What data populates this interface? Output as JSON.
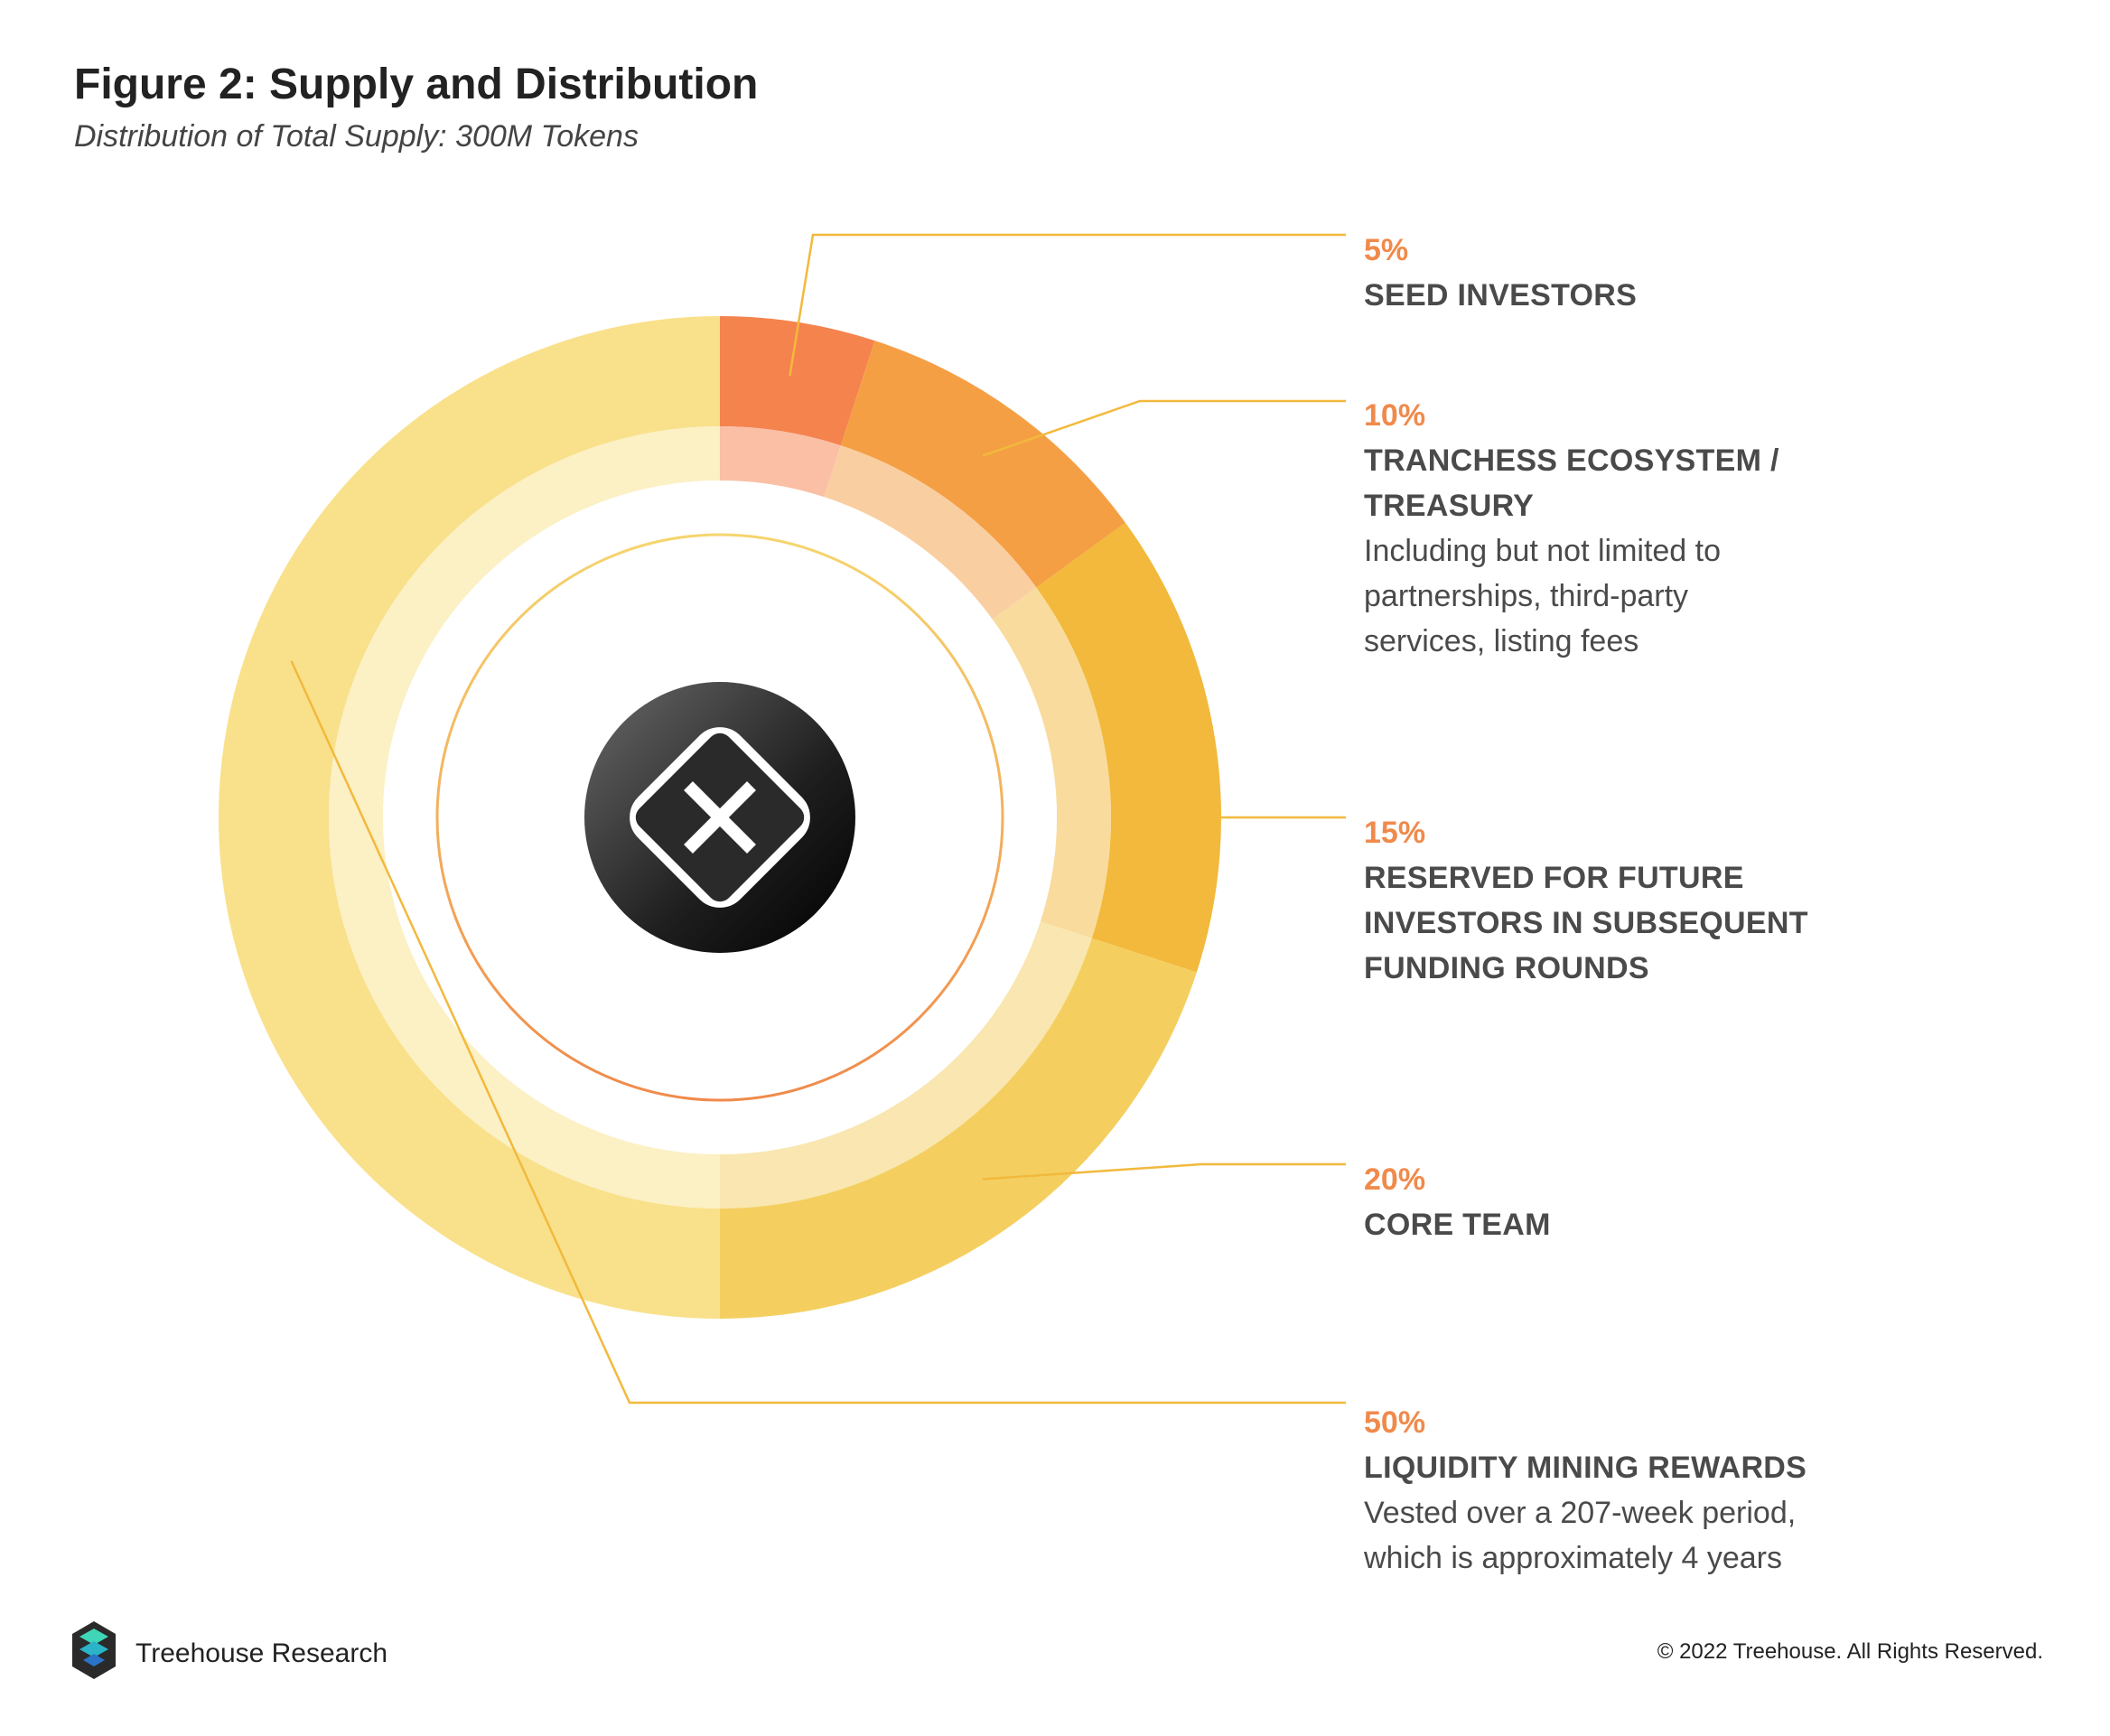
{
  "chart_data": {
    "type": "pie",
    "title": "Figure 2: Supply and Distribution",
    "subtitle": "Distribution of Total Supply: 300M Tokens",
    "slices": [
      {
        "percent_label": "5%",
        "value": 5,
        "name": "SEED INVESTORS",
        "description": "",
        "color": "#f4834e",
        "inner_color": "#fbbfa6"
      },
      {
        "percent_label": "10%",
        "value": 10,
        "name": "TRANCHESS ECOSYSTEM / TREASURY",
        "description": "Including but not limited to partnerships, third-party services, listing fees",
        "color": "#f59f45",
        "inner_color": "#f9cfa2"
      },
      {
        "percent_label": "15%",
        "value": 15,
        "name": "RESERVED FOR FUTURE INVESTORS IN SUBSEQUENT FUNDING ROUNDS",
        "description": "",
        "color": "#f2b93c",
        "inner_color": "#f8db9d"
      },
      {
        "percent_label": "20%",
        "value": 20,
        "name": "CORE TEAM",
        "description": "",
        "color": "#f4cf60",
        "inner_color": "#f9e6b0"
      },
      {
        "percent_label": "50%",
        "value": 50,
        "name": "LIQUIDITY MINING REWARDS",
        "description": "Vested over a 207-week period, which is approximately 4 years",
        "color": "#f9e18b",
        "inner_color": "#fcf0c5"
      }
    ],
    "accent_color": "#f08a4b",
    "leader_line_color": "#f2b93c"
  },
  "footer": {
    "brand": "Treehouse Research",
    "copyright": "© 2022 Treehouse. All Rights Reserved."
  },
  "icons": {
    "center_logo": "tranchess-logo-icon",
    "brand_logo": "treehouse-logo-icon"
  }
}
